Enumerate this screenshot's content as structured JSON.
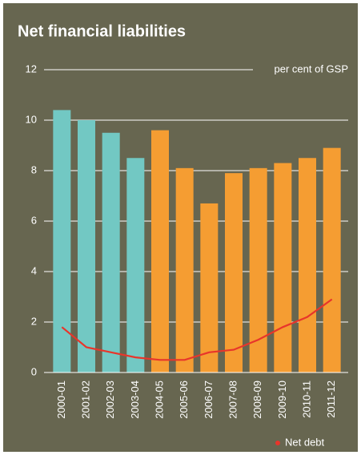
{
  "chart_data": {
    "type": "bar",
    "title": "Net financial liabilities",
    "y_label": "per cent of GSP",
    "categories": [
      "2000-01",
      "2001-02",
      "2002-03",
      "2003-04",
      "2004-05",
      "2005-06",
      "2006-07",
      "2007-08",
      "2008-09",
      "2009-10",
      "2010-11",
      "2011-12"
    ],
    "series": [
      {
        "type": "bar",
        "colors": [
          "#72c8c3",
          "#72c8c3",
          "#72c8c3",
          "#72c8c3",
          "#f59d32",
          "#f59d32",
          "#f59d32",
          "#f59d32",
          "#f59d32",
          "#f59d32",
          "#f59d32",
          "#f59d32"
        ],
        "values": [
          10.4,
          10.0,
          9.5,
          8.5,
          9.6,
          8.1,
          6.7,
          7.9,
          8.1,
          8.3,
          8.5,
          8.9
        ]
      },
      {
        "type": "line",
        "name": "Net debt",
        "color": "#e8352b",
        "values": [
          1.8,
          1.0,
          0.8,
          0.6,
          0.5,
          0.5,
          0.8,
          0.9,
          1.3,
          1.8,
          2.2,
          2.9
        ]
      }
    ],
    "ylim": [
      0,
      12
    ],
    "yticks": [
      0,
      2,
      4,
      6,
      8,
      10,
      12
    ],
    "grid": true,
    "legend": "bottom-right"
  }
}
